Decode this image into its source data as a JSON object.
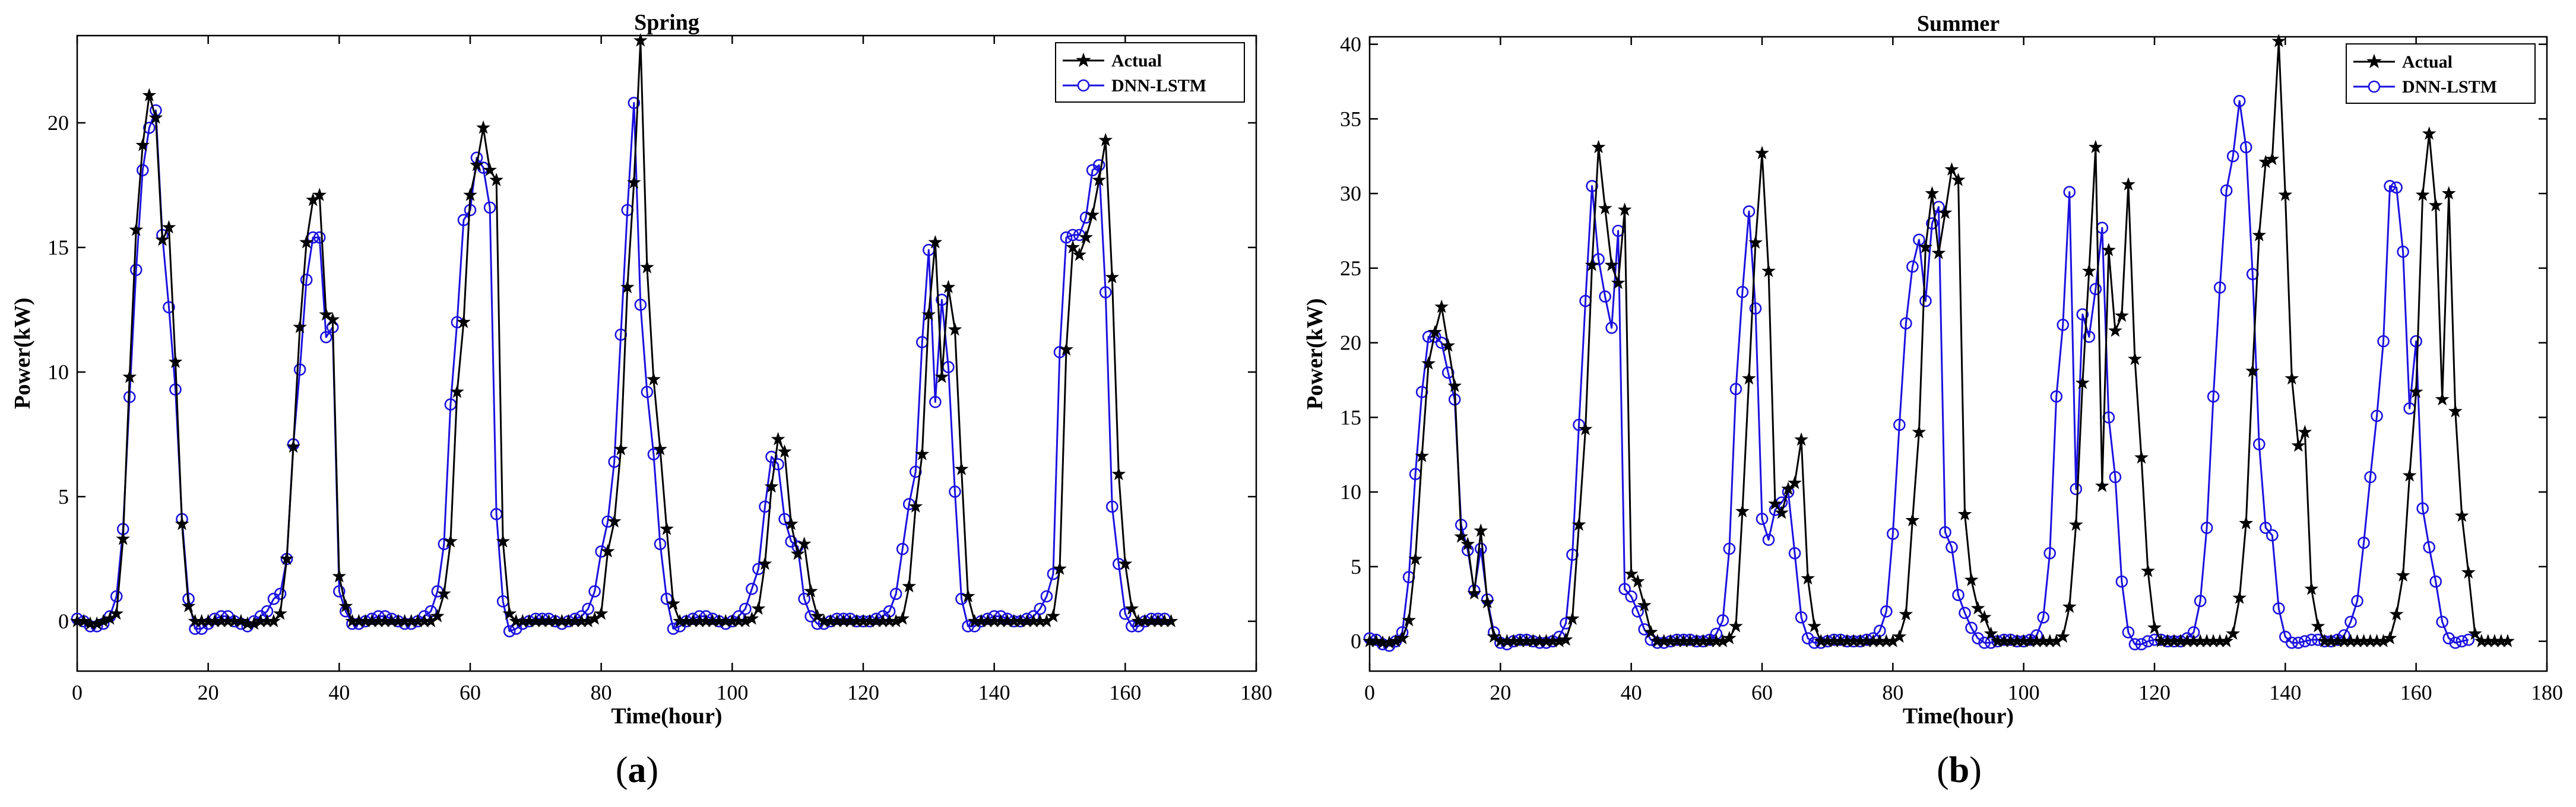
{
  "colors": {
    "actual": "#000000",
    "predicted": "#1a10e0",
    "axis": "#000000"
  },
  "chart_data": [
    {
      "type": "line",
      "panel_label": {
        "open": "(",
        "letter": "a",
        "close": ")"
      },
      "title": "Spring",
      "xlabel": "Time(hour)",
      "ylabel": "Power(kW)",
      "xlim": [
        0,
        180
      ],
      "ylim": [
        -2,
        23.5
      ],
      "xticks": [
        0,
        20,
        40,
        60,
        80,
        100,
        120,
        140,
        160,
        180
      ],
      "yticks": [
        0,
        5,
        10,
        15,
        20
      ],
      "legend": {
        "position": "top-right",
        "entries": [
          "Actual",
          "DNN-LSTM"
        ]
      },
      "series": [
        {
          "name": "Actual",
          "marker": "star",
          "values": [
            0.0,
            0.0,
            -0.1,
            -0.1,
            0.0,
            0.1,
            0.3,
            3.3,
            9.8,
            15.7,
            19.1,
            21.1,
            20.2,
            15.3,
            15.8,
            10.4,
            3.9,
            0.6,
            0.0,
            0.0,
            0.0,
            0.0,
            0.0,
            0.0,
            0.0,
            0.0,
            -0.1,
            -0.1,
            0.0,
            0.0,
            0.0,
            0.3,
            2.5,
            7.0,
            11.8,
            15.2,
            16.9,
            17.1,
            12.3,
            12.1,
            1.8,
            0.6,
            0.0,
            0.0,
            0.0,
            0.0,
            0.0,
            0.0,
            0.0,
            0.0,
            0.0,
            0.0,
            0.0,
            0.0,
            0.0,
            0.2,
            1.1,
            3.2,
            9.2,
            12.0,
            17.1,
            18.3,
            19.8,
            18.1,
            17.7,
            3.2,
            0.3,
            0.0,
            0.0,
            0.0,
            0.0,
            0.0,
            0.0,
            0.0,
            0.0,
            0.0,
            0.0,
            0.0,
            0.0,
            0.1,
            0.3,
            2.8,
            4.0,
            6.9,
            13.4,
            17.6,
            23.3,
            14.2,
            9.7,
            6.9,
            3.7,
            0.7,
            0.0,
            0.0,
            0.0,
            0.0,
            0.0,
            0.0,
            0.0,
            0.0,
            0.0,
            0.0,
            0.0,
            0.1,
            0.5,
            2.3,
            5.4,
            7.3,
            6.8,
            3.9,
            2.7,
            3.1,
            1.2,
            0.2,
            0.0,
            0.0,
            0.0,
            0.0,
            0.0,
            0.0,
            0.0,
            0.0,
            0.0,
            0.0,
            0.0,
            0.0,
            0.1,
            1.4,
            4.6,
            6.7,
            12.3,
            15.2,
            9.8,
            13.4,
            11.7,
            6.1,
            1.0,
            0.0,
            0.0,
            0.0,
            0.0,
            0.0,
            0.0,
            0.0,
            0.0,
            0.0,
            0.0,
            0.0,
            0.0,
            0.2,
            2.1,
            10.9,
            15.0,
            14.7,
            15.4,
            16.3,
            17.7,
            19.3,
            13.8,
            5.9,
            2.3,
            0.5,
            0.0,
            0.0,
            0.0,
            0.0,
            0.0,
            0.0
          ]
        },
        {
          "name": "DNN-LSTM",
          "marker": "circle",
          "values": [
            0.1,
            0.0,
            -0.2,
            -0.2,
            -0.1,
            0.2,
            1.0,
            3.7,
            9.0,
            14.1,
            18.1,
            19.8,
            20.5,
            15.5,
            12.6,
            9.3,
            4.1,
            0.9,
            -0.3,
            -0.3,
            -0.1,
            0.1,
            0.2,
            0.2,
            0.0,
            -0.1,
            -0.2,
            0.0,
            0.2,
            0.4,
            0.9,
            1.1,
            2.5,
            7.1,
            10.1,
            13.7,
            15.4,
            15.4,
            11.4,
            11.8,
            1.2,
            0.4,
            -0.1,
            -0.1,
            0.0,
            0.1,
            0.2,
            0.2,
            0.1,
            0.0,
            -0.1,
            -0.1,
            0.0,
            0.2,
            0.4,
            1.2,
            3.1,
            8.7,
            12.0,
            16.1,
            16.5,
            18.6,
            18.2,
            16.6,
            4.3,
            0.8,
            -0.4,
            -0.3,
            -0.1,
            0.0,
            0.1,
            0.1,
            0.1,
            0.0,
            -0.1,
            0.0,
            0.1,
            0.2,
            0.5,
            1.2,
            2.8,
            4.0,
            6.4,
            11.5,
            16.5,
            20.8,
            12.7,
            9.2,
            6.7,
            3.1,
            0.9,
            -0.3,
            -0.2,
            0.0,
            0.1,
            0.2,
            0.2,
            0.1,
            0.0,
            -0.1,
            0.0,
            0.2,
            0.5,
            1.3,
            2.1,
            4.6,
            6.6,
            6.3,
            4.1,
            3.2,
            3.0,
            0.9,
            0.2,
            -0.1,
            -0.1,
            0.0,
            0.1,
            0.1,
            0.1,
            0.0,
            0.0,
            0.0,
            0.1,
            0.2,
            0.4,
            1.1,
            2.9,
            4.7,
            6.0,
            11.2,
            14.9,
            8.8,
            12.9,
            10.2,
            5.2,
            0.9,
            -0.2,
            -0.2,
            0.0,
            0.1,
            0.2,
            0.2,
            0.1,
            0.0,
            0.0,
            0.1,
            0.2,
            0.5,
            1.0,
            1.9,
            10.8,
            15.4,
            15.5,
            15.5,
            16.2,
            18.1,
            18.3,
            13.2,
            4.6,
            2.3,
            0.3,
            -0.2,
            -0.2,
            0.0,
            0.1,
            0.1,
            0.1
          ]
        }
      ]
    },
    {
      "type": "line",
      "panel_label": {
        "open": "(",
        "letter": "b",
        "close": ")"
      },
      "title": "Summer",
      "xlabel": "Time(hour)",
      "ylabel": "Power(kW)",
      "xlim": [
        0,
        180
      ],
      "ylim": [
        -2,
        40.5
      ],
      "xticks": [
        0,
        20,
        40,
        60,
        80,
        100,
        120,
        140,
        160,
        180
      ],
      "yticks": [
        0,
        5,
        10,
        15,
        20,
        25,
        30,
        35,
        40
      ],
      "legend": {
        "position": "top-right",
        "entries": [
          "Actual",
          "DNN-LSTM"
        ]
      },
      "series": [
        {
          "name": "Actual",
          "marker": "star",
          "values": [
            0.0,
            0.0,
            -0.1,
            -0.1,
            0.0,
            0.2,
            1.4,
            5.5,
            12.4,
            18.6,
            20.7,
            22.4,
            19.8,
            17.1,
            7.0,
            6.5,
            3.2,
            7.4,
            2.6,
            0.3,
            0.0,
            0.0,
            0.0,
            0.0,
            0.0,
            0.0,
            0.0,
            0.0,
            0.0,
            0.0,
            0.1,
            1.5,
            7.8,
            14.2,
            25.2,
            33.1,
            29.0,
            25.2,
            24.0,
            28.9,
            4.5,
            4.0,
            2.4,
            0.6,
            0.0,
            0.0,
            0.0,
            0.0,
            0.0,
            0.0,
            0.0,
            0.0,
            0.0,
            0.0,
            0.0,
            0.2,
            1.0,
            8.7,
            17.6,
            26.7,
            32.7,
            24.8,
            9.2,
            8.6,
            10.2,
            10.6,
            13.5,
            4.2,
            1.0,
            0.0,
            0.0,
            0.0,
            0.0,
            0.0,
            0.0,
            0.0,
            0.0,
            0.0,
            0.0,
            0.0,
            0.0,
            0.3,
            1.8,
            8.1,
            14.0,
            26.4,
            30.0,
            26.0,
            28.7,
            31.6,
            30.9,
            8.5,
            4.1,
            2.2,
            1.6,
            0.5,
            0.0,
            0.0,
            0.0,
            0.0,
            0.0,
            0.0,
            0.0,
            0.0,
            0.0,
            0.0,
            0.3,
            2.3,
            7.8,
            17.3,
            24.8,
            33.1,
            10.4,
            26.2,
            20.8,
            21.8,
            30.6,
            18.9,
            12.3,
            4.7,
            0.9,
            0.0,
            0.0,
            0.0,
            0.0,
            0.0,
            0.0,
            0.0,
            0.0,
            0.0,
            0.0,
            0.0,
            0.5,
            2.9,
            7.9,
            18.1,
            27.2,
            32.1,
            32.3,
            40.2,
            29.9,
            17.6,
            13.1,
            14.0,
            3.5,
            1.0,
            0.0,
            0.0,
            0.0,
            0.0,
            0.0,
            0.0,
            0.0,
            0.0,
            0.0,
            0.0,
            0.2,
            1.8,
            4.4,
            11.1,
            16.7,
            29.9,
            34.0,
            29.2,
            16.2,
            30.0,
            15.4,
            8.4,
            4.6,
            0.5,
            0.0,
            0.0,
            0.0,
            0.0,
            0.0
          ]
        },
        {
          "name": "DNN-LSTM",
          "marker": "circle",
          "values": [
            0.2,
            0.1,
            -0.2,
            -0.3,
            0.0,
            0.6,
            4.3,
            11.2,
            16.7,
            20.4,
            20.4,
            20.0,
            18.0,
            16.2,
            7.8,
            6.1,
            3.4,
            6.2,
            2.8,
            0.6,
            -0.1,
            -0.2,
            0.0,
            0.1,
            0.1,
            0.0,
            -0.1,
            -0.1,
            0.0,
            0.3,
            1.2,
            5.8,
            14.5,
            22.8,
            30.5,
            25.6,
            23.1,
            21.0,
            27.5,
            3.5,
            3.0,
            2.0,
            0.8,
            0.1,
            -0.1,
            -0.1,
            0.0,
            0.1,
            0.1,
            0.1,
            0.0,
            0.0,
            0.1,
            0.5,
            1.4,
            6.2,
            16.9,
            23.4,
            28.8,
            22.3,
            8.2,
            6.8,
            8.8,
            9.3,
            10.0,
            5.9,
            1.6,
            0.2,
            -0.1,
            -0.1,
            0.0,
            0.1,
            0.1,
            0.0,
            0.0,
            0.0,
            0.1,
            0.2,
            0.7,
            2.0,
            7.2,
            14.5,
            21.3,
            25.1,
            26.9,
            22.8,
            28.0,
            29.1,
            7.3,
            6.3,
            3.1,
            1.9,
            0.9,
            0.2,
            -0.1,
            -0.1,
            0.0,
            0.1,
            0.1,
            0.0,
            0.0,
            0.1,
            0.4,
            1.6,
            5.9,
            16.4,
            21.2,
            30.1,
            10.2,
            21.9,
            20.4,
            23.6,
            27.7,
            15.0,
            11.0,
            4.0,
            0.6,
            -0.2,
            -0.2,
            0.0,
            0.1,
            0.1,
            0.0,
            0.0,
            0.0,
            0.2,
            0.6,
            2.7,
            7.6,
            16.4,
            23.7,
            30.2,
            32.5,
            36.2,
            33.1,
            24.6,
            13.2,
            7.6,
            7.1,
            2.2,
            0.3,
            -0.1,
            -0.1,
            0.0,
            0.1,
            0.1,
            0.0,
            0.0,
            0.1,
            0.4,
            1.3,
            2.7,
            6.6,
            11.0,
            15.1,
            20.1,
            30.5,
            30.4,
            26.1,
            15.6,
            20.1,
            8.9,
            6.3,
            4.0,
            1.3,
            0.2,
            -0.1,
            0.0,
            0.1
          ]
        }
      ]
    }
  ]
}
